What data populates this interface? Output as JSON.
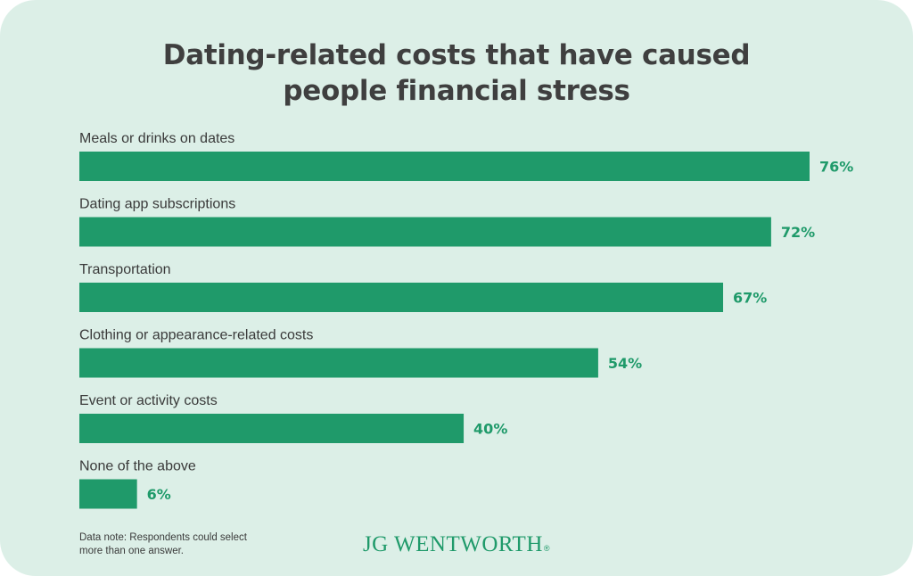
{
  "colors": {
    "background": "#dcefe7",
    "bar": "#1f9a6a",
    "value_text": "#1f9a6a",
    "title_text": "#3f3f3f",
    "label_text": "#3a3a3a",
    "logo": "#1f9a6a"
  },
  "chart_data": {
    "type": "bar",
    "orientation": "horizontal",
    "title_lines": [
      "Dating-related costs that have caused",
      "people financial stress"
    ],
    "categories": [
      "Meals or drinks on dates",
      "Dating app subscriptions",
      "Transportation",
      "Clothing or appearance-related costs",
      "Event or activity costs",
      "None of the above"
    ],
    "values": [
      76,
      72,
      67,
      54,
      40,
      6
    ],
    "value_labels": [
      "76%",
      "72%",
      "67%",
      "54%",
      "40%",
      "6%"
    ],
    "unit": "%",
    "xlim": [
      0,
      76
    ],
    "grid": false,
    "legend": "none"
  },
  "footer": {
    "note_lines": [
      "Data note: Respondents could select",
      "more than one answer."
    ],
    "logo_text": "JG WENTWORTH",
    "logo_mark": "®"
  }
}
